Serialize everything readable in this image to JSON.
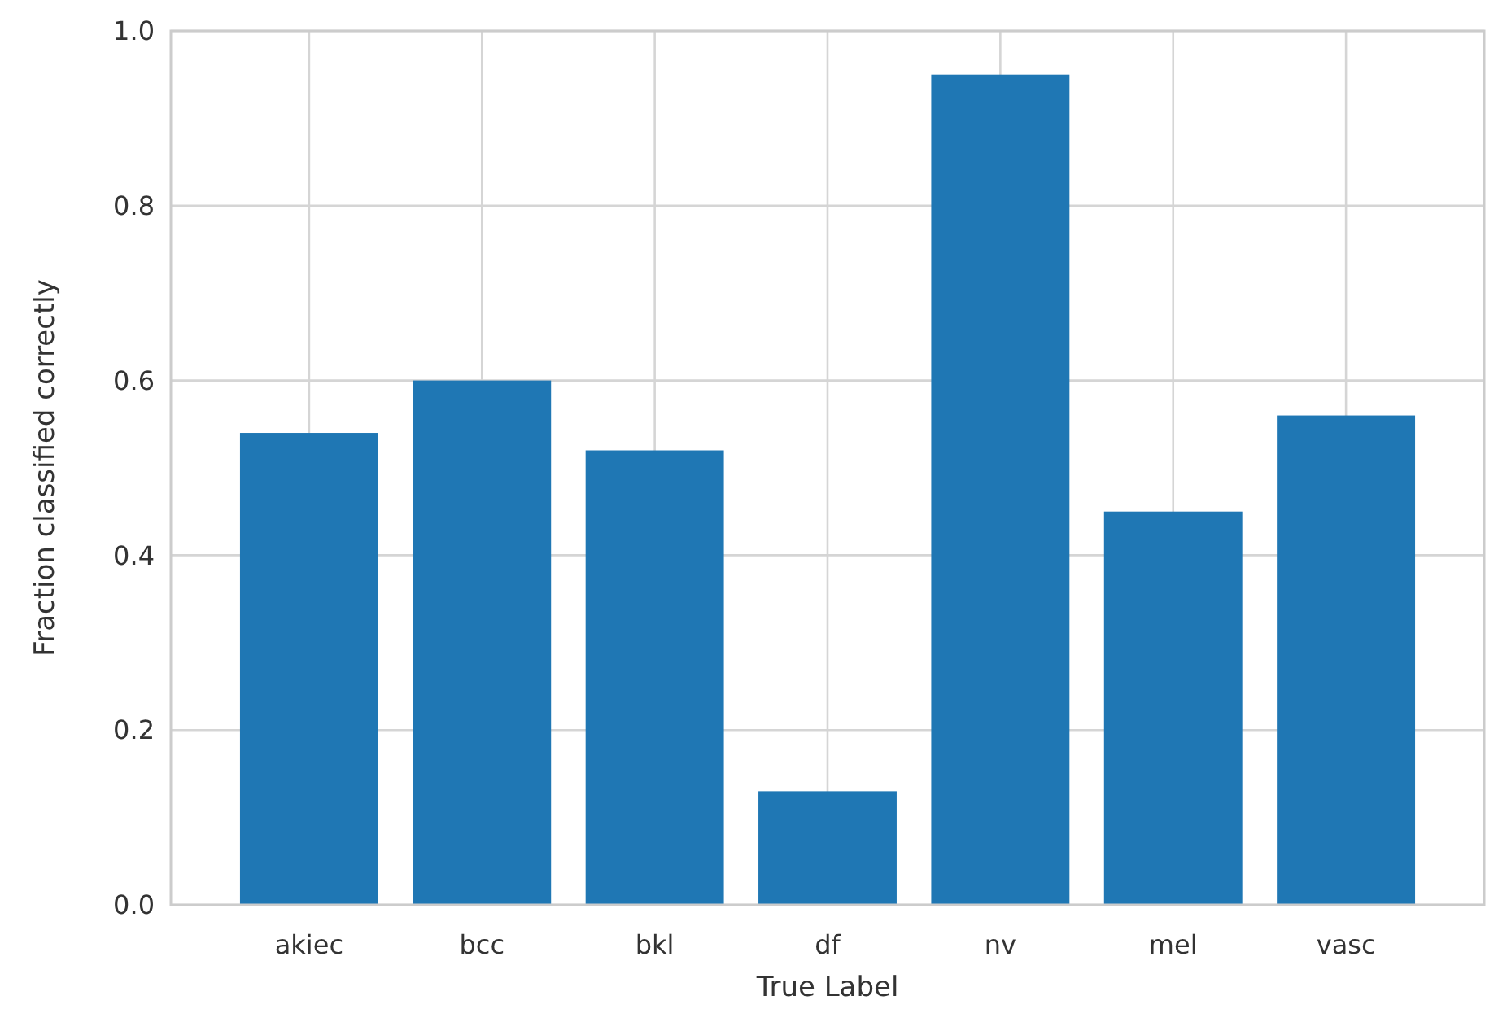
{
  "chart_data": {
    "type": "bar",
    "xlabel": "True Label",
    "ylabel": "Fraction classified correctly",
    "categories": [
      "akiec",
      "bcc",
      "bkl",
      "df",
      "nv",
      "mel",
      "vasc"
    ],
    "values": [
      0.54,
      0.6,
      0.52,
      0.13,
      0.95,
      0.45,
      0.56
    ],
    "color": "#1f77b4",
    "ylim": [
      0,
      1
    ],
    "yticks": [
      {
        "value": 0,
        "label": "0.0"
      },
      {
        "value": 0.2,
        "label": "0.2"
      },
      {
        "value": 0.4,
        "label": "0.4"
      },
      {
        "value": 0.6,
        "label": "0.6"
      },
      {
        "value": 0.8,
        "label": "0.8"
      },
      {
        "value": 1,
        "label": "1.0"
      }
    ],
    "grid": true
  }
}
